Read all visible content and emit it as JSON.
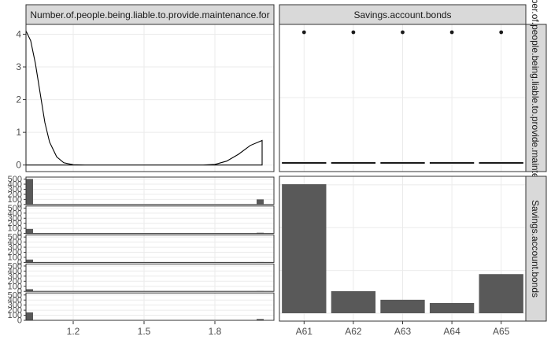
{
  "chart_data": {
    "type": "pairs",
    "variables": [
      "Number.of.people.being.liable.to.provide.maintenance.for",
      "Savings.account.bonds"
    ],
    "strips": {
      "col1": "Number.of.people.being.liable.to.provide.maintenance.for",
      "col2": "Savings.account.bonds",
      "row1": "Number.of.people.being.liable.to.provide.maintenance.for",
      "row2": "Savings.account.bonds"
    },
    "x_ticks": [
      "1.2",
      "1.5",
      "1.8"
    ],
    "x_tick_values": [
      1.2,
      1.5,
      1.8
    ],
    "x_range": [
      1.0,
      2.05
    ],
    "density": {
      "type": "line",
      "ylim": [
        -0.2,
        4.3
      ],
      "y_ticks": [
        "0",
        "1",
        "2",
        "3",
        "4"
      ],
      "y_tick_values": [
        0,
        1,
        2,
        3,
        4
      ],
      "x": [
        1.0,
        1.02,
        1.04,
        1.06,
        1.08,
        1.1,
        1.13,
        1.16,
        1.2,
        1.25,
        1.3,
        1.75,
        1.8,
        1.85,
        1.9,
        1.95,
        2.0
      ],
      "y": [
        4.1,
        3.8,
        3.1,
        2.2,
        1.3,
        0.7,
        0.25,
        0.07,
        0.01,
        0.0,
        0.0,
        0.0,
        0.02,
        0.12,
        0.33,
        0.6,
        0.75
      ]
    },
    "boxplot": {
      "type": "boxplot",
      "categories": [
        "A61",
        "A62",
        "A63",
        "A64",
        "A65"
      ],
      "median": [
        1,
        1,
        1,
        1,
        1
      ],
      "outlier": [
        2,
        2,
        2,
        2,
        2
      ]
    },
    "hist_rows": {
      "type": "bar",
      "y_ticks": [
        "0",
        "100",
        "200",
        "300",
        "400",
        "500"
      ],
      "y_tick_values": [
        0,
        100,
        200,
        300,
        400,
        500
      ],
      "ylim": [
        0,
        540
      ],
      "x_at": [
        1.0,
        2.0
      ],
      "groups": [
        "A61",
        "A62",
        "A63",
        "A64",
        "A65"
      ],
      "counts": [
        [
          503,
          100
        ],
        [
          89,
          14
        ],
        [
          56,
          7
        ],
        [
          43,
          6
        ],
        [
          157,
          26
        ]
      ]
    },
    "bars": {
      "type": "bar",
      "categories": [
        "A61",
        "A62",
        "A63",
        "A64",
        "A65"
      ],
      "values": [
        603,
        103,
        63,
        48,
        183
      ],
      "ylim": [
        0,
        640
      ]
    }
  }
}
